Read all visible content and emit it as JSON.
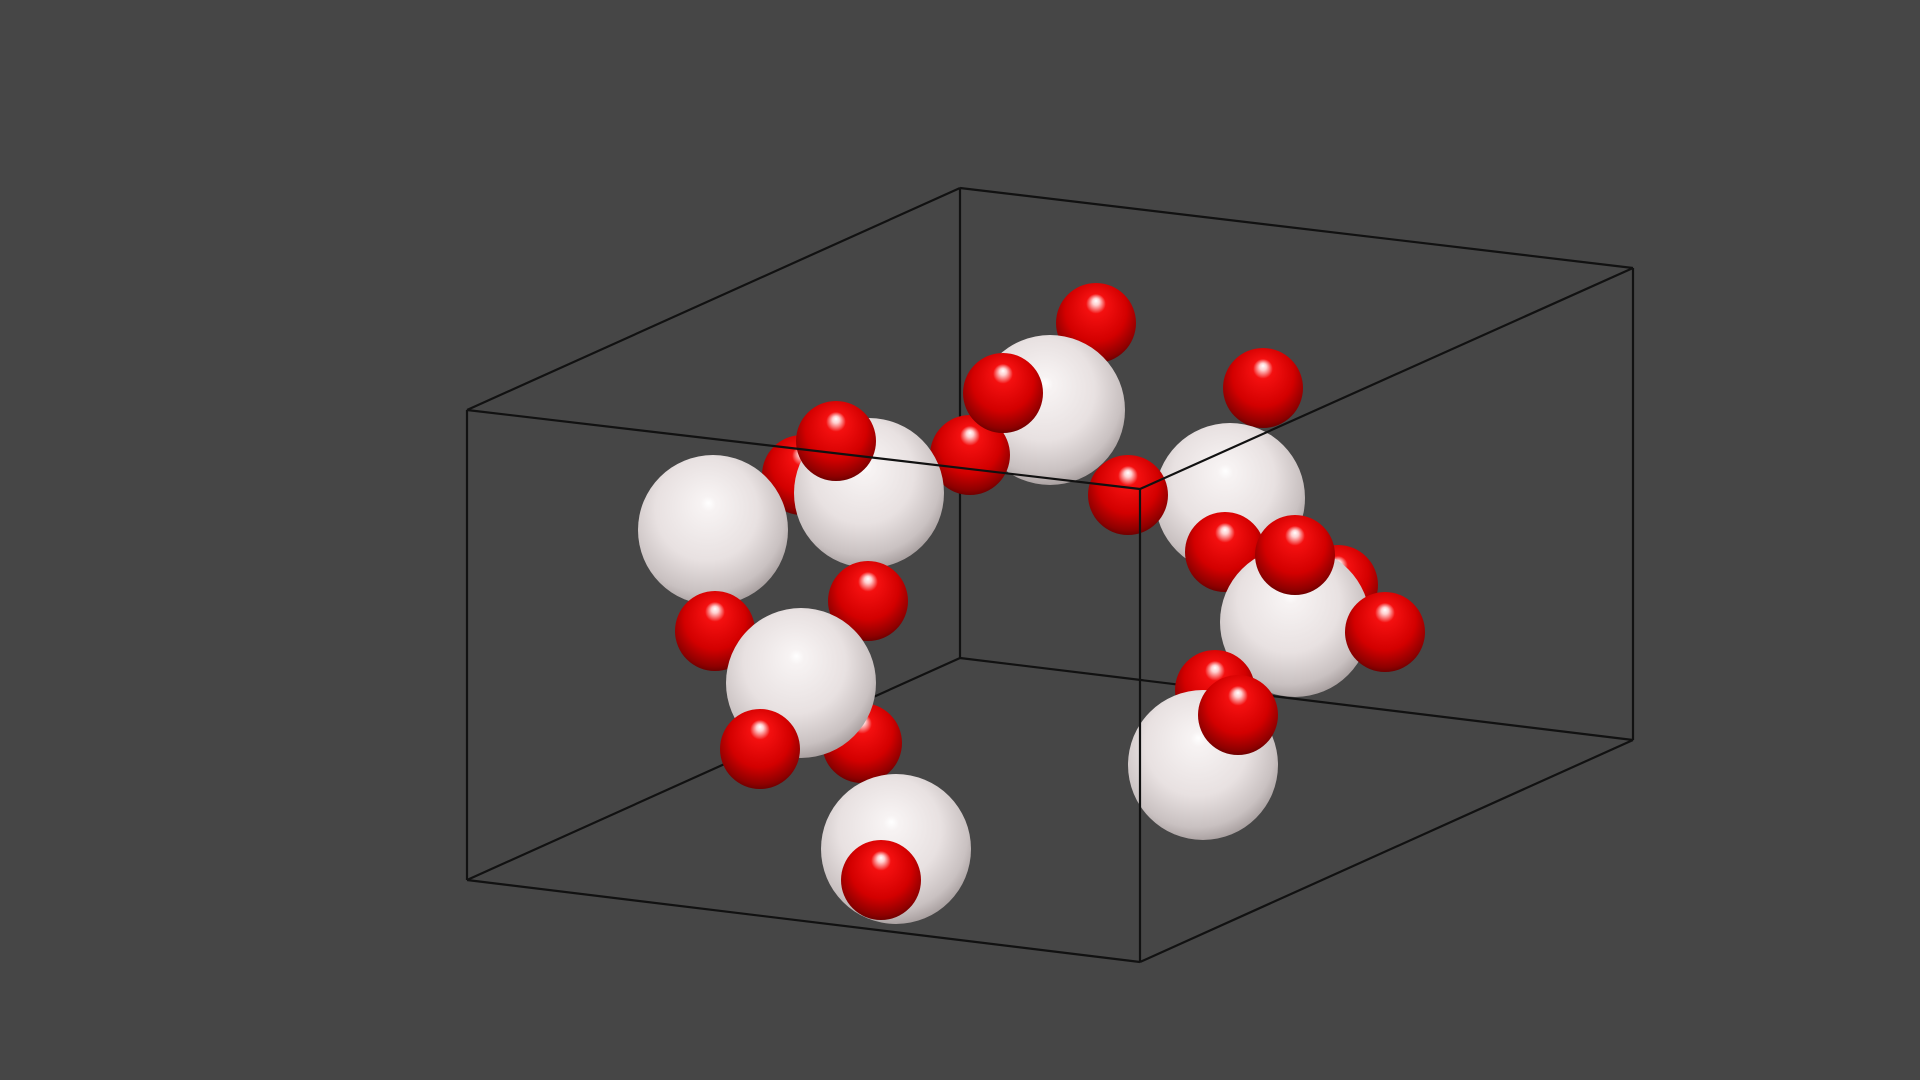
{
  "viewer": {
    "background_color": "#464646",
    "cell_edge_color": "#111111",
    "view": "3d-perspective"
  },
  "structure": {
    "unit_cell": "shown",
    "atom_types": [
      {
        "name": "white-atom",
        "color": "#ece6e6",
        "count": 8
      },
      {
        "name": "red-atom",
        "color": "#e00000",
        "count": 24
      }
    ]
  }
}
